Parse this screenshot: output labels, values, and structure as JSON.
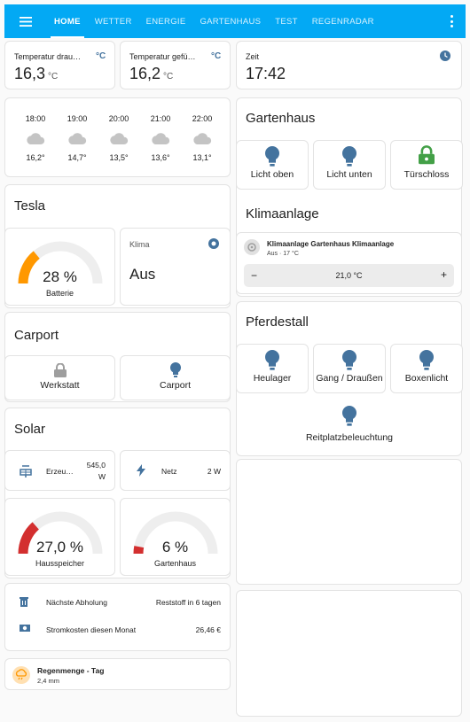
{
  "toolbar": {
    "tabs": [
      "HOME",
      "WETTER",
      "ENERGIE",
      "GARTENHAUS",
      "TEST",
      "REGENRADAR"
    ],
    "colors": {
      "primary": "#03a9f4",
      "icon": "#44739e",
      "green": "#43a047",
      "orange": "#ff9800",
      "red": "#d32f2f"
    }
  },
  "sensors": {
    "outside": {
      "name": "Temperatur drau…",
      "value": "16,3",
      "unit": "°C",
      "icon_text": "°C"
    },
    "felt": {
      "name": "Temperatur gefü…",
      "value": "16,2",
      "unit": "°C",
      "icon_text": "°C"
    },
    "time": {
      "name": "Zeit",
      "value": "17:42"
    }
  },
  "forecast": [
    {
      "time": "18:00",
      "temp": "16,2°"
    },
    {
      "time": "19:00",
      "temp": "14,7°"
    },
    {
      "time": "20:00",
      "temp": "13,5°"
    },
    {
      "time": "21:00",
      "temp": "13,6°"
    },
    {
      "time": "22:00",
      "temp": "13,1°"
    }
  ],
  "tesla": {
    "title": "Tesla",
    "battery": {
      "value": "28 %",
      "label": "Batterie",
      "fraction": 0.28
    },
    "klima": {
      "label": "Klima",
      "state": "Aus"
    }
  },
  "carport": {
    "title": "Carport",
    "werkstatt": "Werkstatt",
    "carport": "Carport"
  },
  "solar": {
    "title": "Solar",
    "erzeugung": {
      "name": "Erzeu…",
      "value_line1": "545,0",
      "value_line2": "W"
    },
    "netz": {
      "name": "Netz",
      "value": "2 W"
    },
    "hausspeicher": {
      "value": "27,0 %",
      "label": "Hausspeicher",
      "fraction": 0.27
    },
    "gartenhaus": {
      "value": "6 %",
      "label": "Gartenhaus",
      "fraction": 0.06
    }
  },
  "info": {
    "abholung": {
      "name": "Nächste Abholung",
      "value": "Reststoff in 6 tagen"
    },
    "strom": {
      "name": "Stromkosten diesen Monat",
      "value": "26,46 €"
    }
  },
  "regen": {
    "name": "Regenmenge - Tag",
    "value": "2,4 mm"
  },
  "gartenhaus": {
    "title": "Gartenhaus",
    "buttons": [
      "Licht oben",
      "Licht unten",
      "Türschloss"
    ]
  },
  "klimaanlage": {
    "title": "Klimaanlage",
    "name": "Klimaanlage Gartenhaus Klimaanlage",
    "state": "Aus · 17 °C",
    "minus": "−",
    "plus": "+",
    "target": "21,0 °C"
  },
  "pferdestall": {
    "title": "Pferdestall",
    "buttons": [
      "Heulager",
      "Gang / Draußen",
      "Boxenlicht",
      "Reitplatzbeleuchtung"
    ]
  }
}
